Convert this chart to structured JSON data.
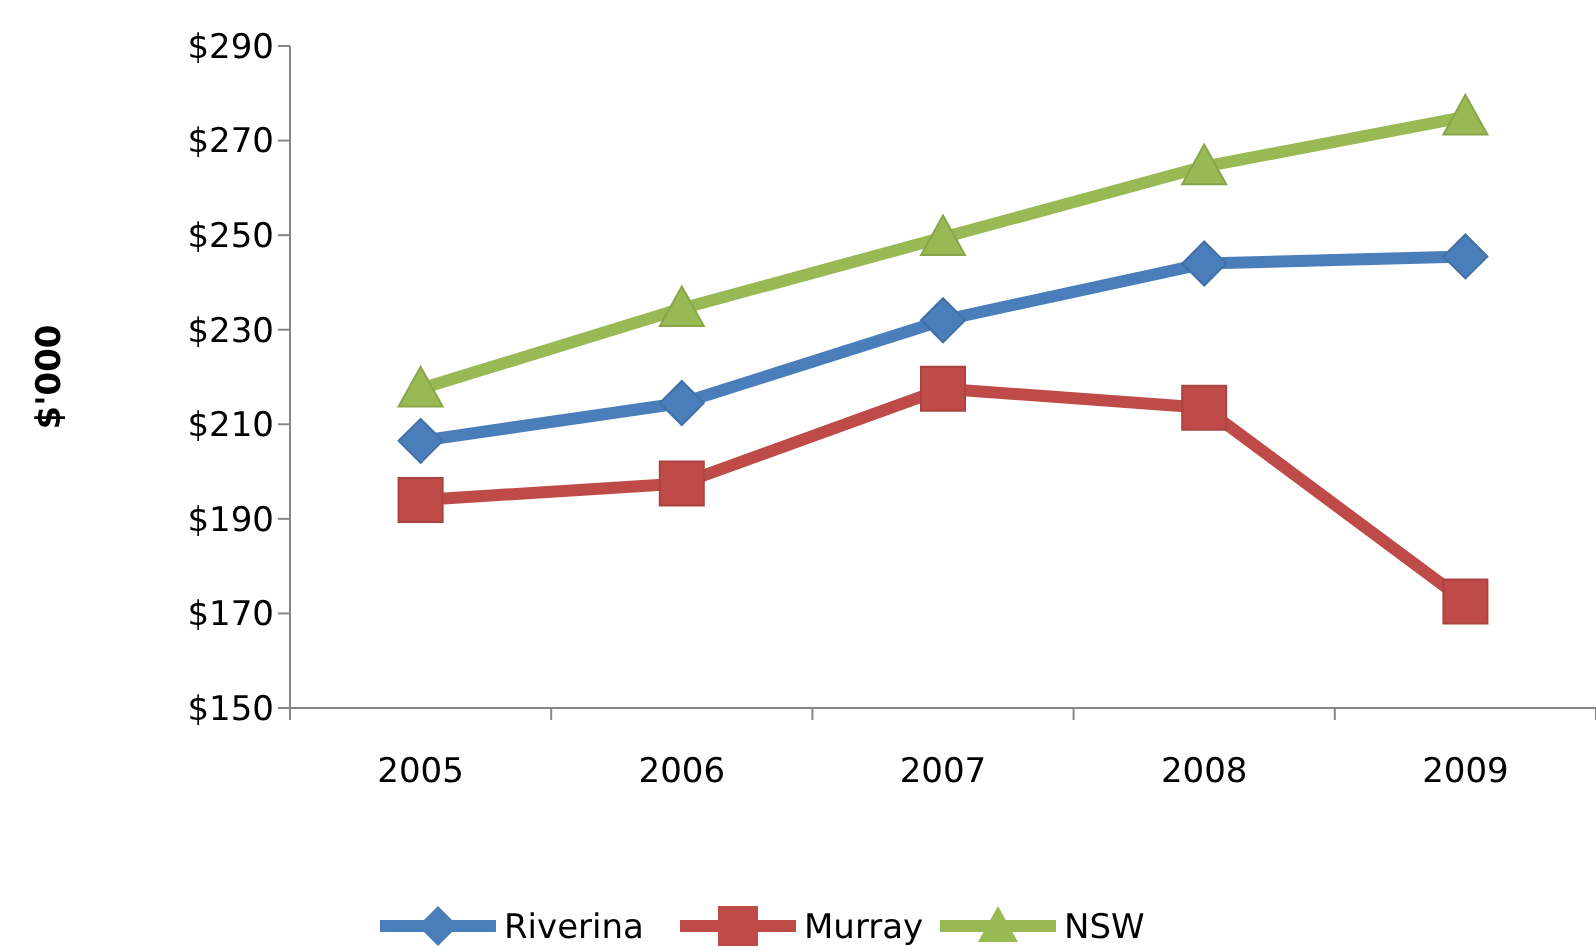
{
  "chart_data": {
    "type": "line",
    "ylabel": "$'000",
    "categories": [
      "2005",
      "2006",
      "2007",
      "2008",
      "2009"
    ],
    "series": [
      {
        "name": "Riverina",
        "color": "#4a7ebb",
        "marker": "diamond",
        "values": [
          206.5,
          214.5,
          232,
          244,
          245.5
        ]
      },
      {
        "name": "Murray",
        "color": "#be4b48",
        "marker": "square",
        "values": [
          194,
          197.5,
          217.5,
          213.5,
          172.5
        ]
      },
      {
        "name": "NSW",
        "color": "#98b954",
        "marker": "triangle",
        "values": [
          217.5,
          234.5,
          249.5,
          264.5,
          275
        ]
      }
    ],
    "ylim": [
      150,
      290
    ],
    "yticks": [
      {
        "value": 150,
        "label": "$150"
      },
      {
        "value": 170,
        "label": "$170"
      },
      {
        "value": 190,
        "label": "$190"
      },
      {
        "value": 210,
        "label": "$210"
      },
      {
        "value": 230,
        "label": "$230"
      },
      {
        "value": 250,
        "label": "$250"
      },
      {
        "value": 270,
        "label": "$270"
      },
      {
        "value": 290,
        "label": "$290"
      }
    ],
    "grid": false,
    "legend": "bottom",
    "line_style": "solid"
  }
}
